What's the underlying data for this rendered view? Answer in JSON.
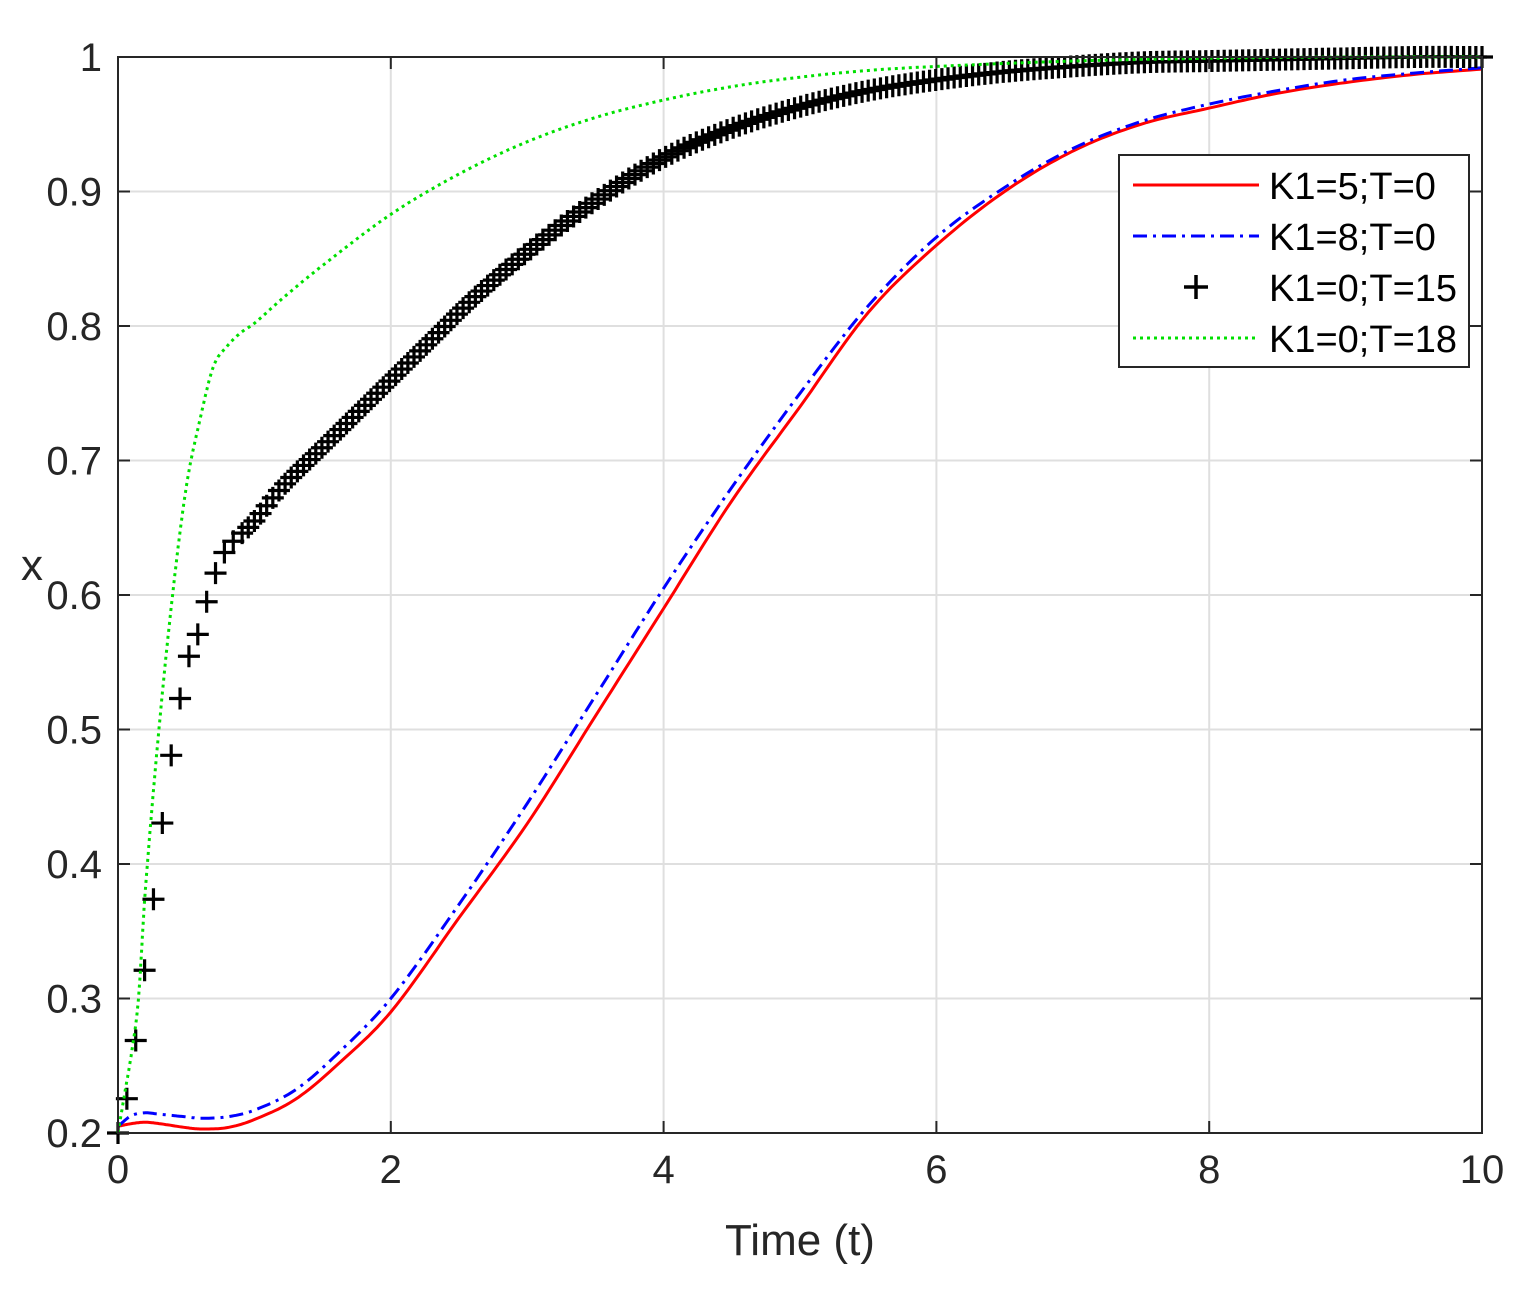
{
  "chart_data": {
    "type": "line",
    "title": "",
    "xlabel": "Time (t)",
    "ylabel": "x",
    "xlim": [
      0,
      10
    ],
    "ylim": [
      0.2,
      1
    ],
    "xticks": [
      0,
      2,
      4,
      6,
      8,
      10
    ],
    "yticks": [
      0.2,
      0.3,
      0.4,
      0.5,
      0.6,
      0.7,
      0.8,
      0.9,
      1
    ],
    "xtick_labels": [
      "0",
      "2",
      "4",
      "6",
      "8",
      "10"
    ],
    "ytick_labels": [
      "0.2",
      "0.3",
      "0.4",
      "0.5",
      "0.6",
      "0.7",
      "0.8",
      "0.9",
      "1"
    ],
    "grid": true,
    "legend_position": "top-right",
    "series": [
      {
        "name": "K1=5;T=0",
        "style": "solid",
        "color": "#ff0000",
        "x": [
          0,
          0.1,
          0.2,
          0.3,
          0.5,
          0.6,
          0.8,
          1.0,
          1.3,
          1.6,
          2.0,
          2.5,
          3.0,
          3.5,
          4.0,
          4.5,
          5.0,
          5.5,
          6.0,
          6.5,
          7.0,
          7.5,
          8.0,
          8.5,
          9.0,
          9.5,
          10.0
        ],
        "y": [
          0.205,
          0.207,
          0.208,
          0.207,
          0.204,
          0.203,
          0.204,
          0.21,
          0.225,
          0.25,
          0.29,
          0.36,
          0.43,
          0.51,
          0.59,
          0.67,
          0.74,
          0.81,
          0.86,
          0.9,
          0.93,
          0.95,
          0.962,
          0.973,
          0.981,
          0.987,
          0.991
        ]
      },
      {
        "name": "K1=8;T=0",
        "style": "dashdot",
        "color": "#0000ff",
        "x": [
          0,
          0.1,
          0.2,
          0.3,
          0.5,
          0.6,
          0.8,
          1.0,
          1.3,
          1.6,
          2.0,
          2.5,
          3.0,
          3.5,
          4.0,
          4.5,
          5.0,
          5.5,
          6.0,
          6.5,
          7.0,
          7.5,
          8.0,
          8.5,
          9.0,
          9.5,
          10.0
        ],
        "y": [
          0.205,
          0.213,
          0.215,
          0.214,
          0.212,
          0.211,
          0.212,
          0.217,
          0.232,
          0.258,
          0.3,
          0.37,
          0.445,
          0.525,
          0.605,
          0.68,
          0.75,
          0.815,
          0.866,
          0.903,
          0.932,
          0.952,
          0.965,
          0.975,
          0.983,
          0.988,
          0.992
        ]
      },
      {
        "name": "K1=0;T=15",
        "style": "plus-markers",
        "color": "#000000",
        "x": [
          0,
          0.02,
          0.05,
          0.08,
          0.1,
          0.15,
          0.2,
          0.25,
          0.3,
          0.35,
          0.4,
          0.45,
          0.5,
          0.6,
          0.65,
          0.7,
          0.75,
          0.8,
          0.9,
          1.0,
          1.2,
          1.5,
          1.8,
          2.0,
          2.3,
          2.6,
          3.0,
          3.5,
          4.0,
          4.5,
          5.0,
          5.5,
          6.0,
          6.5,
          7.0,
          7.5,
          8.0,
          8.5,
          9.0,
          9.5,
          10.0
        ],
        "y": [
          0.2,
          0.21,
          0.22,
          0.232,
          0.245,
          0.285,
          0.325,
          0.365,
          0.41,
          0.45,
          0.488,
          0.52,
          0.548,
          0.575,
          0.595,
          0.612,
          0.625,
          0.635,
          0.645,
          0.655,
          0.68,
          0.71,
          0.74,
          0.76,
          0.79,
          0.82,
          0.855,
          0.893,
          0.925,
          0.947,
          0.963,
          0.975,
          0.983,
          0.989,
          0.993,
          0.996,
          0.997,
          0.998,
          0.999,
          1.0,
          1.0
        ]
      },
      {
        "name": "K1=0;T=18",
        "style": "dotted",
        "color": "#00e000",
        "x": [
          0,
          0.05,
          0.1,
          0.15,
          0.2,
          0.3,
          0.4,
          0.5,
          0.6,
          0.7,
          0.8,
          0.9,
          1.0,
          1.2,
          1.5,
          2.0,
          2.5,
          3.0,
          3.5,
          4.0,
          4.5,
          5.0,
          5.5,
          6.0,
          7.0,
          8.0,
          9.0,
          10.0
        ],
        "y": [
          0.2,
          0.23,
          0.26,
          0.3,
          0.38,
          0.5,
          0.6,
          0.68,
          0.73,
          0.77,
          0.785,
          0.795,
          0.802,
          0.82,
          0.845,
          0.883,
          0.913,
          0.937,
          0.955,
          0.968,
          0.978,
          0.985,
          0.99,
          0.993,
          0.997,
          0.999,
          1.0,
          1.0
        ]
      }
    ]
  }
}
